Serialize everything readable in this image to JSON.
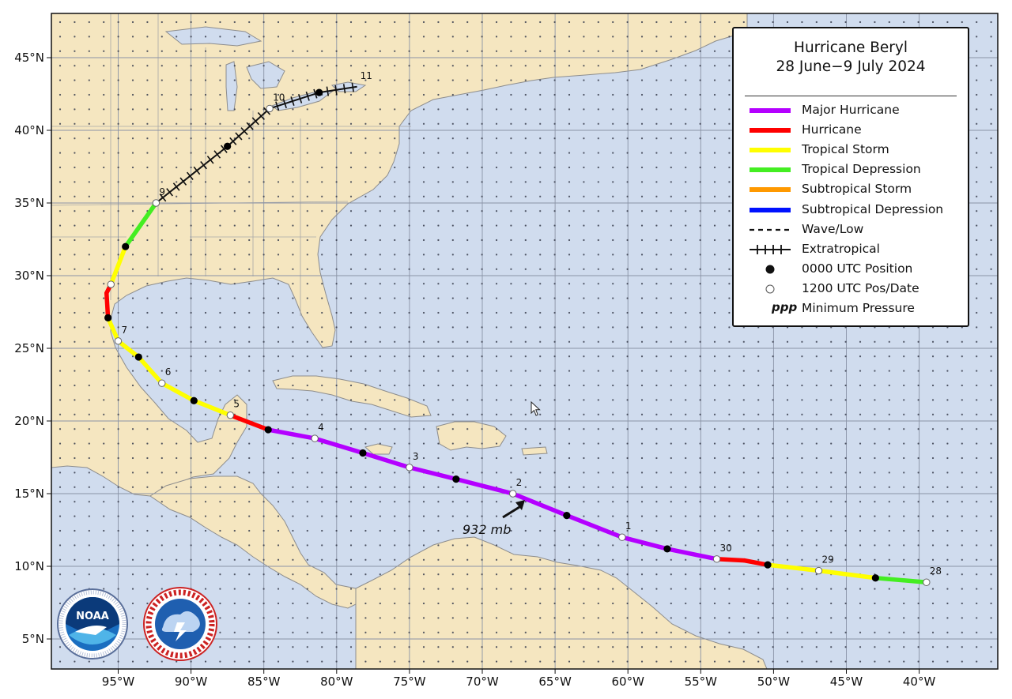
{
  "title": {
    "line1": "Hurricane Beryl",
    "line2": "28 June−9 July 2024"
  },
  "legend": [
    {
      "label": "Major Hurricane",
      "symbol": "line",
      "color": "#b400ff"
    },
    {
      "label": "Hurricane",
      "symbol": "line",
      "color": "#ff0000"
    },
    {
      "label": "Tropical Storm",
      "symbol": "line",
      "color": "#ffff00"
    },
    {
      "label": "Tropical Depression",
      "symbol": "line",
      "color": "#44ee22"
    },
    {
      "label": "Subtropical Storm",
      "symbol": "line",
      "color": "#ff9900"
    },
    {
      "label": "Subtropical Depression",
      "symbol": "line",
      "color": "#0011ff"
    },
    {
      "label": "Wave/Low",
      "symbol": "dashed",
      "color": "#111111"
    },
    {
      "label": "Extratropical",
      "symbol": "crossed",
      "color": "#111111"
    },
    {
      "label": "0000 UTC Position",
      "symbol": "black-dot",
      "color": "#111111"
    },
    {
      "label": "1200 UTC Pos/Date",
      "symbol": "white-dot",
      "color": "#ffffff"
    },
    {
      "label": "Minimum Pressure",
      "symbol": "ppp",
      "text": "ppp",
      "color": "#111111"
    }
  ],
  "axes": {
    "lon_labels": [
      "95°W",
      "90°W",
      "85°W",
      "80°W",
      "75°W",
      "70°W",
      "65°W",
      "60°W",
      "55°W",
      "50°W",
      "45°W",
      "40°W"
    ],
    "lon_values": [
      -95,
      -90,
      -85,
      -80,
      -75,
      -70,
      -65,
      -60,
      -55,
      -50,
      -45,
      -40
    ],
    "lat_labels": [
      "45°N",
      "40°N",
      "35°N",
      "30°N",
      "25°N",
      "20°N",
      "15°N",
      "10°N",
      "5°N"
    ],
    "lat_values": [
      45,
      40,
      35,
      30,
      25,
      20,
      15,
      10,
      5
    ]
  },
  "colors": {
    "ocean": "#d0dcee",
    "land": "#f5e6c0",
    "border": "#9a9a9a",
    "grid": "#8a93a6",
    "major_hurricane": "#b400ff",
    "hurricane": "#ff0000",
    "tropical_storm": "#ffff00",
    "tropical_depression": "#44ee22",
    "extratropical": "#111111"
  },
  "track": [
    {
      "lon": -39.5,
      "lat": 8.9,
      "status": "tropical_depression",
      "type": "1200",
      "date": "28"
    },
    {
      "lon": -43.0,
      "lat": 9.2,
      "status": "tropical_storm",
      "type": "0000"
    },
    {
      "lon": -46.9,
      "lat": 9.7,
      "status": "tropical_storm",
      "type": "1200",
      "date": "29"
    },
    {
      "lon": -50.4,
      "lat": 10.1,
      "status": "hurricane",
      "type": "0000"
    },
    {
      "lon": -52.0,
      "lat": 10.4,
      "status": "hurricane"
    },
    {
      "lon": -53.9,
      "lat": 10.5,
      "status": "major_hurricane",
      "type": "1200",
      "date": "30"
    },
    {
      "lon": -57.3,
      "lat": 11.2,
      "status": "major_hurricane",
      "type": "0000"
    },
    {
      "lon": -60.4,
      "lat": 12.0,
      "status": "major_hurricane",
      "type": "1200",
      "date": "1"
    },
    {
      "lon": -64.2,
      "lat": 13.5,
      "status": "major_hurricane",
      "type": "0000"
    },
    {
      "lon": -67.9,
      "lat": 15.0,
      "status": "major_hurricane",
      "type": "1200",
      "date": "2"
    },
    {
      "lon": -71.8,
      "lat": 16.0,
      "status": "major_hurricane",
      "type": "0000"
    },
    {
      "lon": -75.0,
      "lat": 16.8,
      "status": "major_hurricane",
      "type": "1200",
      "date": "3"
    },
    {
      "lon": -78.2,
      "lat": 17.8,
      "status": "major_hurricane",
      "type": "0000"
    },
    {
      "lon": -81.5,
      "lat": 18.8,
      "status": "major_hurricane",
      "type": "1200",
      "date": "4"
    },
    {
      "lon": -84.7,
      "lat": 19.4,
      "status": "hurricane",
      "type": "0000"
    },
    {
      "lon": -87.3,
      "lat": 20.4,
      "status": "tropical_storm",
      "type": "1200",
      "date": "5"
    },
    {
      "lon": -89.8,
      "lat": 21.4,
      "status": "tropical_storm",
      "type": "0000"
    },
    {
      "lon": -92.0,
      "lat": 22.6,
      "status": "tropical_storm",
      "type": "1200",
      "date": "6"
    },
    {
      "lon": -93.6,
      "lat": 24.4,
      "status": "tropical_storm",
      "type": "0000"
    },
    {
      "lon": -95.0,
      "lat": 25.5,
      "status": "tropical_storm",
      "type": "1200",
      "date": "7"
    },
    {
      "lon": -95.7,
      "lat": 27.1,
      "status": "hurricane",
      "type": "0000"
    },
    {
      "lon": -95.8,
      "lat": 28.8,
      "status": "hurricane"
    },
    {
      "lon": -95.5,
      "lat": 29.4,
      "status": "tropical_storm",
      "type": "1200"
    },
    {
      "lon": -94.5,
      "lat": 32.0,
      "status": "tropical_depression",
      "type": "0000"
    },
    {
      "lon": -92.4,
      "lat": 35.0,
      "status": "extratropical",
      "type": "1200",
      "date": "9"
    },
    {
      "lon": -87.5,
      "lat": 38.9,
      "status": "extratropical",
      "type": "0000"
    },
    {
      "lon": -84.6,
      "lat": 41.5,
      "status": "extratropical",
      "type": "1200",
      "date": "10"
    },
    {
      "lon": -81.2,
      "lat": 42.6,
      "status": "extratropical",
      "type": "0000"
    },
    {
      "lon": -78.6,
      "lat": 43.0,
      "status": "extratropical",
      "date": "11"
    }
  ],
  "min_pressure": {
    "text": "932 mb",
    "lon": -67.8,
    "lat": 14.9
  },
  "logos": {
    "noaa": {
      "text": "NOAA",
      "ring_text": "NATIONAL OCEANIC AND ATMOSPHERIC ADMINISTRATION · U.S. DEPARTMENT OF COMMERCE"
    },
    "nws": {
      "ring_text": "NATIONAL WEATHER SERVICE"
    }
  }
}
